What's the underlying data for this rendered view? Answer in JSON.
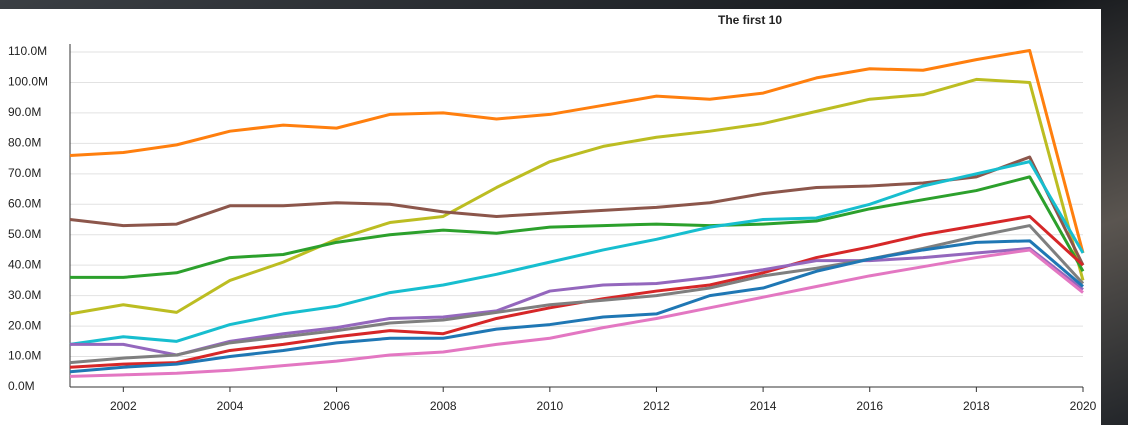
{
  "chart_data": {
    "type": "line",
    "title": "The first 10",
    "x": [
      2001,
      2002,
      2003,
      2004,
      2005,
      2006,
      2007,
      2008,
      2009,
      2010,
      2011,
      2012,
      2013,
      2014,
      2015,
      2016,
      2017,
      2018,
      2019,
      2020
    ],
    "xlim": [
      2001,
      2020
    ],
    "xticks": [
      2002,
      2004,
      2006,
      2008,
      2010,
      2012,
      2014,
      2016,
      2018,
      2020
    ],
    "ylim": [
      0,
      110
    ],
    "yticks": [
      {
        "value": 0,
        "label": "0.0M"
      },
      {
        "value": 10,
        "label": "10.0M"
      },
      {
        "value": 20,
        "label": "20.0M"
      },
      {
        "value": 30,
        "label": "30.0M"
      },
      {
        "value": 40,
        "label": "40.0M"
      },
      {
        "value": 50,
        "label": "50.0M"
      },
      {
        "value": 60,
        "label": "60.0M"
      },
      {
        "value": 70,
        "label": "70.0M"
      },
      {
        "value": 80,
        "label": "80.0M"
      },
      {
        "value": 90,
        "label": "90.0M"
      },
      {
        "value": 100,
        "label": "100.0M"
      },
      {
        "value": 110,
        "label": "110.0M"
      }
    ],
    "grid": true,
    "series": [
      {
        "color": "#ff7f0e",
        "values": [
          76,
          77,
          79.5,
          84,
          86,
          85,
          89.5,
          90,
          88,
          89.5,
          92.5,
          95.5,
          94.5,
          96.5,
          101.5,
          104.5,
          104,
          107.5,
          110.5,
          44
        ]
      },
      {
        "color": "#bcbd22",
        "values": [
          24,
          27,
          24.5,
          35,
          41,
          48.5,
          54,
          56,
          65.5,
          74,
          79,
          82,
          84,
          86.5,
          90.5,
          94.5,
          96,
          101,
          100,
          35
        ]
      },
      {
        "color": "#8c564b",
        "values": [
          55,
          53,
          53.5,
          59.5,
          59.5,
          60.5,
          60,
          57.5,
          56,
          57,
          58,
          59,
          60.5,
          63.5,
          65.5,
          66,
          67,
          69,
          75.5,
          40
        ]
      },
      {
        "color": "#2ca02c",
        "values": [
          36,
          36,
          37.5,
          42.5,
          43.5,
          47.5,
          50,
          51.5,
          50.5,
          52.5,
          53,
          53.5,
          53,
          53.5,
          54.5,
          58.5,
          61.5,
          64.5,
          69,
          38
        ]
      },
      {
        "color": "#17becf",
        "values": [
          14,
          16.5,
          15,
          20.5,
          24,
          26.5,
          31,
          33.5,
          37,
          41,
          45,
          48.5,
          52.5,
          55,
          55.5,
          60,
          66,
          70,
          74,
          44
        ]
      },
      {
        "color": "#d62728",
        "values": [
          6.5,
          7.5,
          8,
          12,
          14,
          16.5,
          18.5,
          17.5,
          22.5,
          26,
          29,
          31.5,
          33.5,
          37.5,
          42.5,
          46,
          50,
          53,
          56,
          40
        ]
      },
      {
        "color": "#9467bd",
        "values": [
          14,
          14,
          10.5,
          15,
          17.5,
          19.5,
          22.5,
          23,
          25,
          31.5,
          33.5,
          34,
          36,
          38.5,
          41.5,
          41.5,
          42.5,
          44,
          45.5,
          32
        ]
      },
      {
        "color": "#7f7f7f",
        "values": [
          8,
          9.5,
          10.5,
          14.5,
          16.5,
          18.5,
          21,
          22,
          24.5,
          27,
          28.5,
          30,
          32.5,
          36.5,
          39,
          42,
          45.5,
          49.5,
          53,
          34
        ]
      },
      {
        "color": "#1f77b4",
        "values": [
          5,
          6.5,
          7.5,
          10,
          12,
          14.5,
          16,
          16,
          19,
          20.5,
          23,
          24,
          30,
          32.5,
          38,
          42,
          45,
          47.5,
          48,
          33
        ]
      },
      {
        "color": "#e377c2",
        "values": [
          3.5,
          4,
          4.5,
          5.5,
          7,
          8.5,
          10.5,
          11.5,
          14,
          16,
          19.5,
          22.5,
          26,
          29.5,
          33,
          36.5,
          39.5,
          42.5,
          45,
          31
        ]
      }
    ]
  }
}
